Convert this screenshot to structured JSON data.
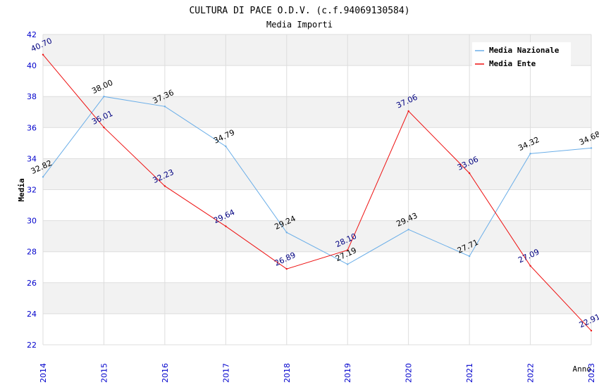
{
  "chart_data": {
    "type": "line",
    "title": "CULTURA DI PACE O.D.V. (c.f.94069130584)",
    "subtitle": "Media Importi",
    "xlabel": "Anno",
    "ylabel": "Media",
    "x": [
      "2014",
      "2015",
      "2016",
      "2017",
      "2018",
      "2019",
      "2020",
      "2021",
      "2022",
      "2023"
    ],
    "ylim": [
      22,
      42
    ],
    "yticks": [
      "22",
      "24",
      "26",
      "28",
      "30",
      "32",
      "34",
      "36",
      "38",
      "40",
      "42"
    ],
    "legend_position": "top-right",
    "series": [
      {
        "name": "Media Nazionale",
        "color": "#6aaee8",
        "label_color": "#000000",
        "values": [
          32.82,
          38.0,
          37.36,
          34.79,
          29.24,
          27.19,
          29.43,
          27.71,
          34.32,
          34.68
        ],
        "labels": [
          "32.82",
          "38.00",
          "37.36",
          "34.79",
          "29.24",
          "27.19",
          "29.43",
          "27.71",
          "34.32",
          "34.68"
        ]
      },
      {
        "name": "Media Ente",
        "color": "#ee1111",
        "label_color": "#000080",
        "values": [
          40.7,
          36.01,
          32.23,
          29.64,
          26.89,
          28.1,
          37.06,
          33.06,
          27.09,
          22.91
        ],
        "labels": [
          "40.70",
          "36.01",
          "32.23",
          "29.64",
          "26.89",
          "28.10",
          "37.06",
          "33.06",
          "27.09",
          "22.91"
        ]
      }
    ]
  },
  "colors": {
    "band": "#f2f2f2",
    "grid": "#dddddd",
    "axis_text": "#0000cc",
    "title_text": "#000000",
    "subtitle_text": "#333333"
  }
}
